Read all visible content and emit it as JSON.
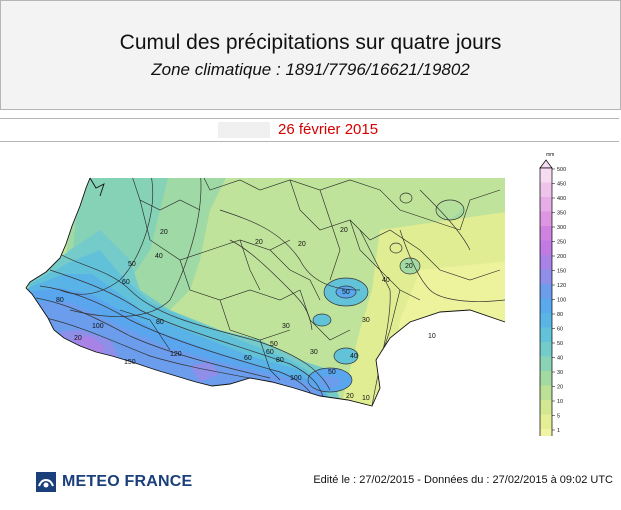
{
  "header": {
    "title": "Cumul des précipitations sur quatre jours",
    "subtitle": "Zone climatique : 1891/7796/16621/19802"
  },
  "date_label": "26 février 2015",
  "legend": {
    "unit": "mm",
    "values": [
      "500",
      "450",
      "400",
      "350",
      "300",
      "250",
      "200",
      "150",
      "120",
      "100",
      "80",
      "60",
      "50",
      "40",
      "30",
      "20",
      "10",
      "5",
      "1"
    ],
    "colors": [
      "#f6dcf0",
      "#efc4ea",
      "#e6ade6",
      "#dc96e2",
      "#cf82e0",
      "#c07ae2",
      "#a982e6",
      "#8f8ee8",
      "#6c9cec",
      "#5aa8ee",
      "#5ab5e6",
      "#62c2d8",
      "#74ccca",
      "#8ad3b6",
      "#a2daa2",
      "#bce196",
      "#d3e792",
      "#e4ee94",
      "#f1f4a4"
    ]
  },
  "map": {
    "contour_labels": [
      "10",
      "20",
      "20",
      "20",
      "30",
      "30",
      "40",
      "40",
      "50",
      "50",
      "50",
      "60",
      "60",
      "60",
      "80",
      "80",
      "80",
      "100",
      "100",
      "120",
      "150",
      "20",
      "20",
      "30",
      "10",
      "20",
      "20",
      "50",
      "40"
    ]
  },
  "footer": {
    "brand": "METEO FRANCE",
    "info": "Edité le : 27/02/2015 - Données du : 27/02/2015 à 09:02 UTC"
  }
}
